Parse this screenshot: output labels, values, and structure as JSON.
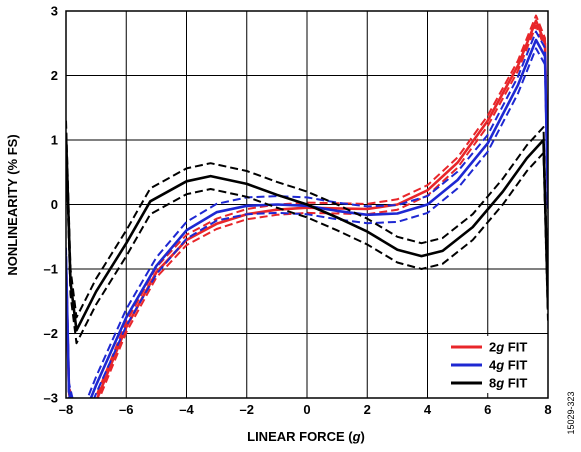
{
  "chart_data": {
    "type": "line",
    "xlabel_main": "LINEAR FORCE (",
    "xlabel_unit": "g",
    "xlabel_end": ")",
    "ylabel": "NONLINEARITY (% FS)",
    "xlim": [
      -8,
      8
    ],
    "ylim": [
      -3,
      3
    ],
    "xticks": [
      -8,
      -6,
      -4,
      -2,
      0,
      2,
      4,
      6,
      8
    ],
    "yticks": [
      -3,
      -2,
      -1,
      0,
      1,
      2,
      3
    ],
    "xtick_labels": [
      "–8",
      "–6",
      "–4",
      "–2",
      "0",
      "2",
      "4",
      "6",
      "8"
    ],
    "ytick_labels": [
      "–3",
      "–2",
      "–1",
      "0",
      "1",
      "2",
      "3"
    ],
    "grid": true,
    "legend_position": "bottom-right",
    "figure_id": "15029-323",
    "series": [
      {
        "name_value": "2",
        "name_unit": "g",
        "name_suffix": " FIT",
        "color": "#e8262a",
        "points": [
          [
            -8,
            -0.9
          ],
          [
            -7.9,
            -2.9
          ],
          [
            -7.5,
            -3.6
          ],
          [
            -7,
            -3.05
          ],
          [
            -6,
            -1.9
          ],
          [
            -5,
            -1.05
          ],
          [
            -4,
            -0.55
          ],
          [
            -3,
            -0.3
          ],
          [
            -2,
            -0.15
          ],
          [
            -1,
            -0.08
          ],
          [
            0,
            -0.05
          ],
          [
            1,
            -0.06
          ],
          [
            2,
            -0.07
          ],
          [
            3,
            0.0
          ],
          [
            4,
            0.22
          ],
          [
            5,
            0.65
          ],
          [
            6,
            1.3
          ],
          [
            7,
            2.15
          ],
          [
            7.6,
            2.85
          ],
          [
            7.9,
            2.5
          ],
          [
            8,
            0.0
          ]
        ],
        "band": 0.08
      },
      {
        "name_value": "4",
        "name_unit": "g",
        "name_suffix": " FIT",
        "color": "#1e28d2",
        "points": [
          [
            -8,
            -0.8
          ],
          [
            -7.9,
            -2.9
          ],
          [
            -7.6,
            -3.5
          ],
          [
            -7,
            -2.8
          ],
          [
            -6,
            -1.75
          ],
          [
            -5,
            -0.95
          ],
          [
            -4,
            -0.4
          ],
          [
            -3,
            -0.12
          ],
          [
            -2,
            -0.02
          ],
          [
            -1,
            0.0
          ],
          [
            0,
            -0.02
          ],
          [
            1,
            -0.1
          ],
          [
            2,
            -0.16
          ],
          [
            3,
            -0.14
          ],
          [
            4,
            0.0
          ],
          [
            5,
            0.38
          ],
          [
            6,
            0.95
          ],
          [
            7,
            1.85
          ],
          [
            7.6,
            2.55
          ],
          [
            7.9,
            2.3
          ],
          [
            8,
            0.0
          ]
        ],
        "band": 0.13
      },
      {
        "name_value": "8",
        "name_unit": "g",
        "name_suffix": " FIT",
        "color": "#000000",
        "points": [
          [
            -8,
            1.1
          ],
          [
            -7.85,
            -1.2
          ],
          [
            -7.65,
            -1.95
          ],
          [
            -7,
            -1.35
          ],
          [
            -6,
            -0.6
          ],
          [
            -5.2,
            0.05
          ],
          [
            -4,
            0.36
          ],
          [
            -3.2,
            0.44
          ],
          [
            -2,
            0.32
          ],
          [
            -1,
            0.15
          ],
          [
            0,
            0.0
          ],
          [
            1,
            -0.2
          ],
          [
            2,
            -0.42
          ],
          [
            3,
            -0.7
          ],
          [
            3.8,
            -0.8
          ],
          [
            4.5,
            -0.72
          ],
          [
            5.5,
            -0.35
          ],
          [
            6.5,
            0.2
          ],
          [
            7.3,
            0.72
          ],
          [
            7.85,
            1.0
          ],
          [
            8,
            -1.6
          ]
        ],
        "band": 0.2
      }
    ]
  }
}
